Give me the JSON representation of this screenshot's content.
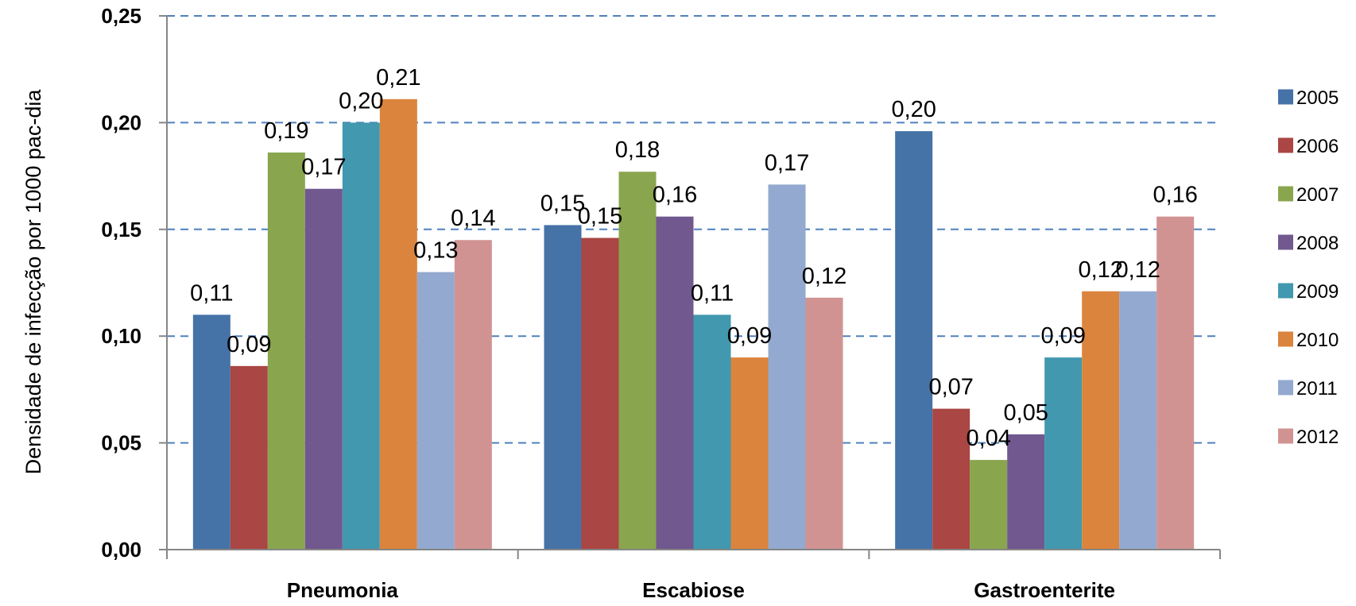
{
  "chart_data": {
    "type": "bar",
    "title": "",
    "xlabel": "",
    "ylabel": "Densidade de infecção por 1000 pac-dia",
    "ylim": [
      0,
      0.25
    ],
    "yticks": [
      0,
      0.05,
      0.1,
      0.15,
      0.2,
      0.25
    ],
    "ytick_labels": [
      "0,00",
      "0,05",
      "0,10",
      "0,15",
      "0,20",
      "0,25"
    ],
    "grid": "horizontal dashed",
    "legend_position": "right",
    "categories": [
      "Pneumonia",
      "Escabiose",
      "Gastroenterite"
    ],
    "series": [
      {
        "name": "2005",
        "color": "#4572A7",
        "values": [
          0.11,
          0.152,
          0.196
        ],
        "labels": [
          "0,11",
          "0,15",
          "0,20"
        ]
      },
      {
        "name": "2006",
        "color": "#AA4643",
        "values": [
          0.086,
          0.146,
          0.066
        ],
        "labels": [
          "0,09",
          "0,15",
          "0,07"
        ]
      },
      {
        "name": "2007",
        "color": "#89A54E",
        "values": [
          0.186,
          0.177,
          0.042
        ],
        "labels": [
          "0,19",
          "0,18",
          "0,04"
        ]
      },
      {
        "name": "2008",
        "color": "#71588F",
        "values": [
          0.169,
          0.156,
          0.054
        ],
        "labels": [
          "0,17",
          "0,16",
          "0,05"
        ]
      },
      {
        "name": "2009",
        "color": "#4198AF",
        "values": [
          0.2,
          0.11,
          0.09
        ],
        "labels": [
          "0,20",
          "0,11",
          "0,09"
        ]
      },
      {
        "name": "2010",
        "color": "#DB843D",
        "values": [
          0.211,
          0.09,
          0.121
        ],
        "labels": [
          "0,21",
          "0,09",
          "0,12"
        ]
      },
      {
        "name": "2011",
        "color": "#93A9CF",
        "values": [
          0.13,
          0.171,
          0.121
        ],
        "labels": [
          "0,13",
          "0,17",
          "0,12"
        ]
      },
      {
        "name": "2012",
        "color": "#D19392",
        "values": [
          0.145,
          0.118,
          0.156
        ],
        "labels": [
          "0,14",
          "0,12",
          "0,16"
        ]
      }
    ]
  },
  "colors": {
    "gridline": "#4F81BD",
    "axis": "#868686"
  }
}
